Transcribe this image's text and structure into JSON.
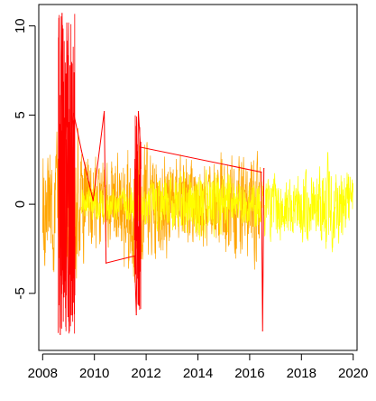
{
  "chart_data": {
    "type": "line",
    "title": "",
    "xlabel": "",
    "ylabel": "",
    "xlim": [
      2007.85,
      2020.15
    ],
    "ylim": [
      -8.2,
      11.2
    ],
    "x_ticks": [
      2008,
      2010,
      2012,
      2014,
      2016,
      2018,
      2020
    ],
    "x_tick_labels": [
      "2008",
      "2010",
      "2012",
      "2014",
      "2016",
      "2018",
      "2020"
    ],
    "y_ticks": [
      -5,
      0,
      5,
      10
    ],
    "y_tick_labels": [
      "-5",
      "0",
      "5",
      "10"
    ],
    "grid": false,
    "legend": "none",
    "series": [
      {
        "color": "#FFA500",
        "x": [
          2008.0,
          2008.5,
          2009.0,
          2009.3,
          2009.5,
          2009.7,
          2010.0,
          2010.3,
          2010.8,
          2011.2,
          2011.5,
          2011.9,
          2012.2,
          2012.6,
          2013.0,
          2013.5,
          2014.0,
          2014.6,
          2015.0,
          2015.5,
          2016.0,
          2016.4
        ],
        "y_high": [
          3.5,
          4.8,
          5.4,
          5.2,
          4.0,
          3.3,
          3.2,
          3.0,
          3.6,
          4.2,
          5.0,
          4.4,
          3.5,
          4.0,
          3.3,
          3.8,
          3.0,
          3.2,
          3.6,
          3.2,
          4.0,
          3.2
        ],
        "y_low": [
          -4.3,
          -5.0,
          -5.2,
          -5.0,
          -4.2,
          -3.6,
          -3.4,
          -3.5,
          -3.2,
          -4.5,
          -5.2,
          -4.6,
          -3.6,
          -4.0,
          -3.2,
          -3.4,
          -3.0,
          -3.2,
          -4.0,
          -4.2,
          -3.8,
          -4.4
        ]
      },
      {
        "color": "#FFFF00",
        "x": [
          2009.5,
          2010.0,
          2011.0,
          2012.5,
          2013.5,
          2014.0,
          2014.5,
          2015.0,
          2015.5,
          2016.0,
          2016.6,
          2017.0,
          2017.5,
          2018.0,
          2018.5,
          2019.0,
          2019.5,
          2020.0
        ],
        "y_high": [
          1.2,
          1.5,
          1.0,
          1.8,
          2.2,
          2.4,
          2.6,
          2.5,
          1.8,
          1.5,
          2.0,
          2.2,
          2.0,
          2.2,
          1.9,
          3.3,
          2.5,
          2.2
        ],
        "y_low": [
          -1.0,
          -1.3,
          -1.2,
          -1.8,
          -2.2,
          -2.4,
          -2.0,
          -2.2,
          -1.5,
          -1.4,
          -2.5,
          -2.4,
          -2.3,
          -2.6,
          -2.7,
          -3.3,
          -2.8,
          -2.2
        ]
      },
      {
        "color": "#FF0000",
        "x": [
          2008.62,
          2008.68,
          2008.75,
          2008.82,
          2008.9,
          2008.98,
          2009.1,
          2009.2,
          2009.5,
          2009.95,
          2010.38,
          2010.45,
          2011.55,
          2011.62,
          2011.7,
          2011.78,
          2016.45,
          2016.5,
          2016.55
        ],
        "y": [
          5.4,
          -7.3,
          10.7,
          -5.2,
          7.3,
          -6.3,
          4.0,
          5.1,
          3.0,
          0.2,
          5.2,
          -3.3,
          -2.9,
          -6.2,
          5.2,
          3.2,
          1.8,
          -7.1,
          2.0
        ]
      }
    ]
  }
}
